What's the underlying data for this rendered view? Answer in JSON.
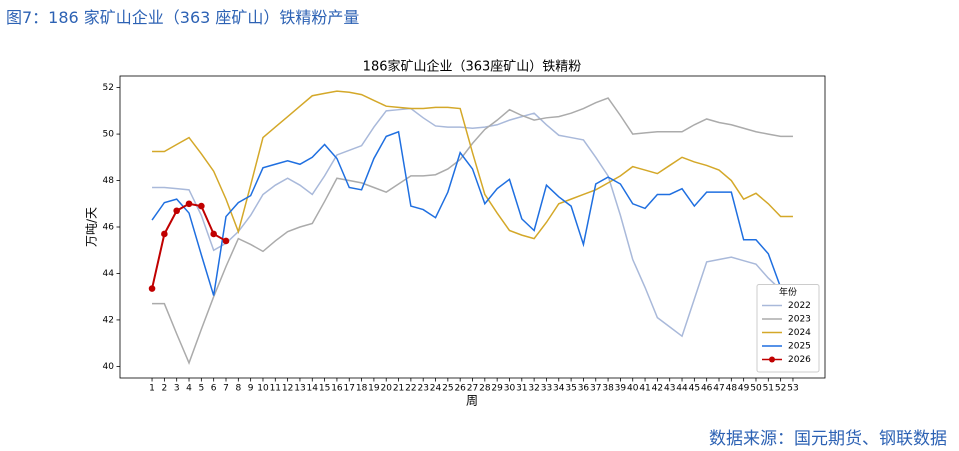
{
  "header": "图7：186 家矿山企业（363 座矿山）铁精粉产量",
  "source": "数据来源：国元期货、钢联数据",
  "chart_data": {
    "type": "line",
    "title": "186家矿山企业（363座矿山）铁精粉",
    "x_label": "周",
    "y_label": "万吨/天",
    "x": [
      1,
      2,
      3,
      4,
      5,
      6,
      7,
      8,
      9,
      10,
      11,
      12,
      13,
      14,
      15,
      16,
      17,
      18,
      19,
      20,
      21,
      22,
      23,
      24,
      25,
      26,
      27,
      28,
      29,
      30,
      31,
      32,
      33,
      34,
      35,
      36,
      37,
      38,
      39,
      40,
      41,
      42,
      43,
      44,
      45,
      46,
      47,
      48,
      49,
      50,
      51,
      52,
      53
    ],
    "xlim": [
      -1.6,
      55.6
    ],
    "xticks": [
      1,
      2,
      3,
      4,
      5,
      6,
      7,
      8,
      9,
      10,
      11,
      12,
      13,
      14,
      15,
      16,
      17,
      18,
      19,
      20,
      21,
      22,
      23,
      24,
      25,
      26,
      27,
      28,
      29,
      30,
      31,
      32,
      33,
      34,
      35,
      36,
      37,
      38,
      39,
      40,
      41,
      42,
      43,
      44,
      45,
      46,
      47,
      48,
      49,
      50,
      51,
      52,
      53
    ],
    "ylim": [
      39.5,
      52.5
    ],
    "yticks": [
      40,
      42,
      44,
      46,
      48,
      50,
      52
    ],
    "legend_title": "年份",
    "legend": "lower right",
    "series": [
      {
        "name": "2022",
        "color": "#a9b9da",
        "values": [
          47.7,
          47.7,
          47.65,
          47.6,
          46.5,
          45.0,
          45.3,
          45.8,
          46.5,
          47.4,
          47.8,
          48.1,
          47.8,
          47.4,
          48.2,
          49.1,
          49.3,
          49.5,
          50.3,
          51.0,
          51.05,
          51.1,
          50.7,
          50.35,
          50.3,
          50.3,
          50.25,
          50.3,
          50.4,
          50.6,
          50.75,
          50.9,
          50.4,
          49.95,
          49.85,
          49.75,
          49.0,
          48.2,
          46.5,
          44.6,
          43.4,
          42.1,
          41.7,
          41.3,
          42.9,
          44.5,
          44.6,
          44.7,
          44.55,
          44.4,
          43.8,
          43.3,
          43.3
        ]
      },
      {
        "name": "2023",
        "color": "#ababab",
        "values": [
          42.7,
          42.7,
          41.4,
          40.15,
          41.6,
          43.0,
          44.3,
          45.5,
          45.25,
          44.95,
          45.4,
          45.8,
          46.0,
          46.15,
          47.1,
          48.1,
          48.0,
          47.9,
          47.7,
          47.5,
          47.85,
          48.2,
          48.2,
          48.25,
          48.5,
          48.9,
          49.6,
          50.2,
          50.6,
          51.05,
          50.8,
          50.6,
          50.7,
          50.75,
          50.9,
          51.1,
          51.35,
          51.55,
          50.8,
          50.0,
          50.05,
          50.1,
          50.1,
          50.1,
          50.4,
          50.65,
          50.5,
          50.4,
          50.25,
          50.1,
          50.0,
          49.9,
          49.9
        ]
      },
      {
        "name": "2024",
        "color": "#d4a829",
        "values": [
          49.25,
          49.25,
          49.55,
          49.85,
          49.15,
          48.4,
          47.2,
          45.8,
          47.8,
          49.85,
          50.3,
          50.75,
          51.2,
          51.65,
          51.75,
          51.85,
          51.8,
          51.7,
          51.45,
          51.2,
          51.15,
          51.1,
          51.1,
          51.15,
          51.15,
          51.1,
          49.2,
          47.4,
          46.6,
          45.85,
          45.65,
          45.5,
          46.2,
          47.0,
          47.2,
          47.4,
          47.6,
          47.9,
          48.2,
          48.6,
          48.45,
          48.3,
          48.65,
          49.0,
          48.8,
          48.65,
          48.45,
          48.0,
          47.2,
          47.45,
          47.0,
          46.45,
          46.45
        ]
      },
      {
        "name": "2025",
        "color": "#1f6fe0",
        "values": [
          46.3,
          47.05,
          47.2,
          46.6,
          44.8,
          43.05,
          46.45,
          47.05,
          47.35,
          48.55,
          48.7,
          48.85,
          48.7,
          49.0,
          49.55,
          48.95,
          47.7,
          47.6,
          48.95,
          49.9,
          50.1,
          46.9,
          46.75,
          46.4,
          47.5,
          49.2,
          48.5,
          47.0,
          47.65,
          48.05,
          46.35,
          45.85,
          47.8,
          47.3,
          46.9,
          45.25,
          47.85,
          48.15,
          47.85,
          47.0,
          46.8,
          47.4,
          47.4,
          47.65,
          46.9,
          47.5,
          47.5,
          47.5,
          45.45,
          45.45,
          44.85,
          43.4,
          43.4
        ]
      },
      {
        "name": "2026",
        "color": "#c00000",
        "marker": true,
        "values": [
          43.35,
          45.7,
          46.7,
          47.0,
          46.9,
          45.7,
          45.4,
          null,
          null,
          null,
          null,
          null,
          null,
          null,
          null,
          null,
          null,
          null,
          null,
          null,
          null,
          null,
          null,
          null,
          null,
          null,
          null,
          null,
          null,
          null,
          null,
          null,
          null,
          null,
          null,
          null,
          null,
          null,
          null,
          null,
          null,
          null,
          null,
          null,
          null,
          null,
          null,
          null,
          null,
          null,
          null,
          null,
          null
        ]
      }
    ]
  }
}
